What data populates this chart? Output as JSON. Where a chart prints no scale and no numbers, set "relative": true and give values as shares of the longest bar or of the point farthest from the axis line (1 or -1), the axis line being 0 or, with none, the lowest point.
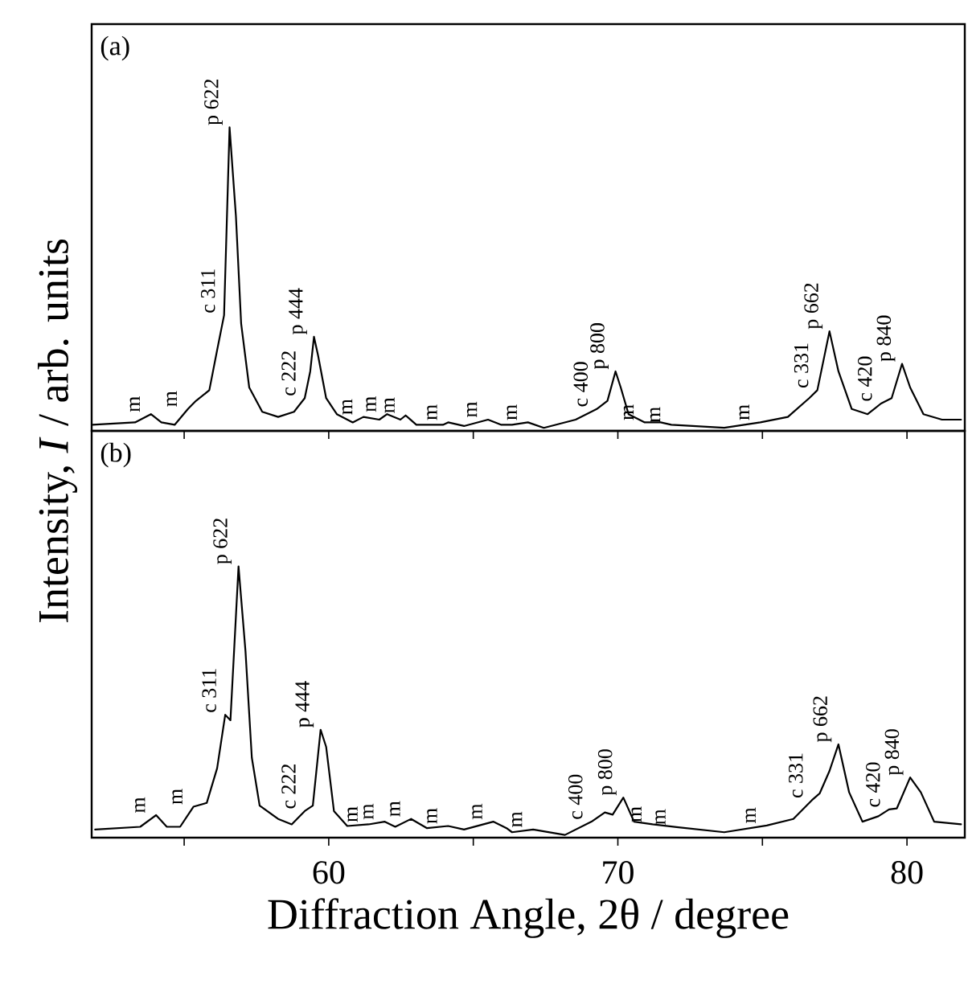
{
  "chart_data": [
    {
      "type": "line",
      "title": "(a)",
      "ylabel": "Intensity, *I* / arb. units",
      "relative": true,
      "tick_labels": false,
      "xlim": [
        51.8,
        82
      ],
      "xticks": [
        {
          "value": 55,
          "label": null
        },
        60,
        {
          "value": 65,
          "label": null
        },
        70,
        {
          "value": 75,
          "label": null
        },
        80
      ],
      "x": [
        51.83,
        53.3,
        53.85,
        54.21,
        54.67,
        55.13,
        55.41,
        55.87,
        56.14,
        56.38,
        56.57,
        56.79,
        56.97,
        57.25,
        57.7,
        58.25,
        58.8,
        59.17,
        59.36,
        59.49,
        59.63,
        59.91,
        60.28,
        60.83,
        61.2,
        61.75,
        62.02,
        62.48,
        62.66,
        63.03,
        63.95,
        64.13,
        64.68,
        65.51,
        65.97,
        66.34,
        66.89,
        67.44,
        68.54,
        69.27,
        69.64,
        69.92,
        70.1,
        70.37,
        70.93,
        71.48,
        71.85,
        73.68,
        74.93,
        75.88,
        76.62,
        76.9,
        77.32,
        77.63,
        78.09,
        78.64,
        79.1,
        79.47,
        79.83,
        80.11,
        80.57,
        81.21,
        81.87
      ],
      "series": [
        {
          "color": "#000000",
          "values": [
            0.02,
            0.028,
            0.055,
            0.028,
            0.02,
            0.072,
            0.099,
            0.134,
            0.266,
            0.381,
            1.0,
            0.707,
            0.354,
            0.143,
            0.063,
            0.046,
            0.063,
            0.108,
            0.196,
            0.31,
            0.249,
            0.108,
            0.055,
            0.028,
            0.046,
            0.037,
            0.055,
            0.037,
            0.051,
            0.02,
            0.02,
            0.028,
            0.016,
            0.037,
            0.02,
            0.02,
            0.028,
            0.01,
            0.037,
            0.072,
            0.099,
            0.196,
            0.143,
            0.055,
            0.028,
            0.028,
            0.02,
            0.01,
            0.028,
            0.046,
            0.108,
            0.134,
            0.328,
            0.196,
            0.072,
            0.055,
            0.09,
            0.108,
            0.221,
            0.143,
            0.055,
            0.037,
            0.037
          ]
        }
      ],
      "annotations": [
        {
          "text": "m",
          "x": 53.85,
          "y": 0.055
        },
        {
          "text": "m",
          "x": 55.13,
          "y": 0.072
        },
        {
          "text": "c 311",
          "x": 56.38,
          "y": 0.381
        },
        {
          "text": "p 622",
          "x": 56.57,
          "y": 1.0
        },
        {
          "text": "c 222",
          "x": 59.17,
          "y": 0.108
        },
        {
          "text": "p 444",
          "x": 59.49,
          "y": 0.31
        },
        {
          "text": "m",
          "x": 61.2,
          "y": 0.046
        },
        {
          "text": "m",
          "x": 62.02,
          "y": 0.055
        },
        {
          "text": "m",
          "x": 62.66,
          "y": 0.051
        },
        {
          "text": "m",
          "x": 64.13,
          "y": 0.028
        },
        {
          "text": "m",
          "x": 65.51,
          "y": 0.037
        },
        {
          "text": "m",
          "x": 66.89,
          "y": 0.028
        },
        {
          "text": "c 400",
          "x": 69.27,
          "y": 0.072
        },
        {
          "text": "p 800",
          "x": 69.92,
          "y": 0.196
        },
        {
          "text": "m",
          "x": 70.93,
          "y": 0.028
        },
        {
          "text": "m",
          "x": 71.85,
          "y": 0.02
        },
        {
          "text": "m",
          "x": 74.93,
          "y": 0.028
        },
        {
          "text": "c 331",
          "x": 76.9,
          "y": 0.134
        },
        {
          "text": "p 662",
          "x": 77.32,
          "y": 0.328
        },
        {
          "text": "c 420",
          "x": 79.1,
          "y": 0.09
        },
        {
          "text": "p 840",
          "x": 79.83,
          "y": 0.221
        }
      ]
    },
    {
      "type": "line",
      "title": "(b)",
      "xlabel": "Diffraction Angle, 2θ / degree",
      "relative": true,
      "tick_labels": "x",
      "xlim": [
        51.8,
        82
      ],
      "xticks": [
        {
          "value": 55,
          "label": null
        },
        60,
        {
          "value": 65,
          "label": null
        },
        70,
        {
          "value": 75,
          "label": null
        },
        80
      ],
      "x": [
        51.92,
        53.48,
        54.03,
        54.4,
        54.86,
        55.32,
        55.78,
        56.14,
        56.42,
        56.6,
        56.88,
        57.12,
        57.34,
        57.61,
        58.25,
        58.72,
        59.17,
        59.45,
        59.72,
        59.91,
        60.18,
        60.64,
        61.38,
        61.93,
        62.3,
        62.85,
        63.4,
        64.13,
        64.68,
        65.69,
        66.15,
        66.34,
        67.07,
        68.17,
        69.09,
        69.55,
        69.82,
        70.19,
        70.56,
        71.2,
        72.03,
        73.68,
        75.15,
        76.07,
        76.71,
        76.98,
        77.32,
        77.63,
        78.0,
        78.46,
        79.01,
        79.38,
        79.65,
        80.11,
        80.48,
        80.94,
        81.87
      ],
      "series": [
        {
          "color": "#000000",
          "values": [
            0.03,
            0.04,
            0.083,
            0.04,
            0.04,
            0.114,
            0.128,
            0.256,
            0.453,
            0.433,
            1.0,
            0.689,
            0.295,
            0.118,
            0.069,
            0.049,
            0.098,
            0.118,
            0.398,
            0.335,
            0.098,
            0.043,
            0.049,
            0.059,
            0.04,
            0.069,
            0.035,
            0.043,
            0.03,
            0.059,
            0.035,
            0.02,
            0.03,
            0.01,
            0.059,
            0.093,
            0.085,
            0.148,
            0.059,
            0.049,
            0.039,
            0.02,
            0.045,
            0.069,
            0.138,
            0.163,
            0.246,
            0.344,
            0.167,
            0.059,
            0.079,
            0.104,
            0.108,
            0.222,
            0.167,
            0.059,
            0.049
          ]
        }
      ],
      "annotations": [
        {
          "text": "m",
          "x": 54.03,
          "y": 0.083
        },
        {
          "text": "m",
          "x": 55.32,
          "y": 0.114
        },
        {
          "text": "c 311",
          "x": 56.42,
          "y": 0.453
        },
        {
          "text": "p 622",
          "x": 56.88,
          "y": 1.0
        },
        {
          "text": "c 222",
          "x": 59.17,
          "y": 0.098
        },
        {
          "text": "p 444",
          "x": 59.72,
          "y": 0.398
        },
        {
          "text": "m",
          "x": 61.38,
          "y": 0.049
        },
        {
          "text": "m",
          "x": 61.93,
          "y": 0.059
        },
        {
          "text": "m",
          "x": 62.85,
          "y": 0.069
        },
        {
          "text": "m",
          "x": 64.13,
          "y": 0.043
        },
        {
          "text": "m",
          "x": 65.69,
          "y": 0.059
        },
        {
          "text": "m",
          "x": 67.07,
          "y": 0.03
        },
        {
          "text": "c 400",
          "x": 69.09,
          "y": 0.059
        },
        {
          "text": "p 800",
          "x": 70.19,
          "y": 0.148
        },
        {
          "text": "m",
          "x": 71.2,
          "y": 0.049
        },
        {
          "text": "m",
          "x": 72.03,
          "y": 0.039
        },
        {
          "text": "m",
          "x": 75.15,
          "y": 0.045
        },
        {
          "text": "c 331",
          "x": 76.71,
          "y": 0.138
        },
        {
          "text": "p 662",
          "x": 77.63,
          "y": 0.344
        },
        {
          "text": "c 420",
          "x": 79.38,
          "y": 0.104
        },
        {
          "text": "p 840",
          "x": 80.11,
          "y": 0.222
        }
      ]
    }
  ]
}
